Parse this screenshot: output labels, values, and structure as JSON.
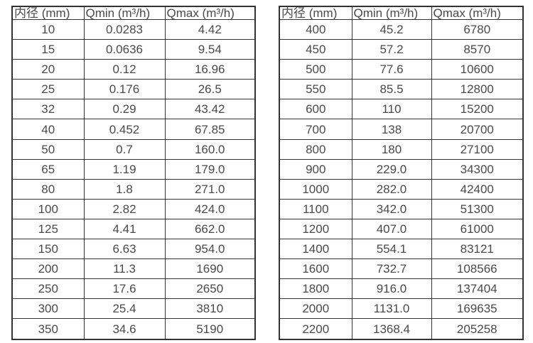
{
  "page": {
    "background_color": "#ffffff",
    "text_color": "#4a4a4a",
    "border_color": "#333333"
  },
  "chart_data": [
    {
      "type": "table",
      "title": "",
      "headers": [
        "内径 (mm)",
        "Qmin (m³/h)",
        "Qmax (m³/h)"
      ],
      "rows": [
        [
          "10",
          "0.0283",
          "4.42"
        ],
        [
          "15",
          "0.0636",
          "9.54"
        ],
        [
          "20",
          "0.12",
          "16.96"
        ],
        [
          "25",
          "0.176",
          "26.5"
        ],
        [
          "32",
          "0.29",
          "43.42"
        ],
        [
          "40",
          "0.452",
          "67.85"
        ],
        [
          "50",
          "0.7",
          "160.0"
        ],
        [
          "65",
          "1.19",
          "179.0"
        ],
        [
          "80",
          "1.8",
          "271.0"
        ],
        [
          "100",
          "2.82",
          "424.0"
        ],
        [
          "125",
          "4.41",
          "662.0"
        ],
        [
          "150",
          "6.63",
          "954.0"
        ],
        [
          "200",
          "11.3",
          "1690"
        ],
        [
          "250",
          "17.6",
          "2650"
        ],
        [
          "300",
          "25.4",
          "3810"
        ],
        [
          "350",
          "34.6",
          "5190"
        ]
      ]
    },
    {
      "type": "table",
      "title": "",
      "headers": [
        "内径 (mm)",
        "Qmin (m³/h)",
        "Qmax (m³/h)"
      ],
      "rows": [
        [
          "400",
          "45.2",
          "6780"
        ],
        [
          "450",
          "57.2",
          "8570"
        ],
        [
          "500",
          "77.6",
          "10600"
        ],
        [
          "550",
          "85.5",
          "12800"
        ],
        [
          "600",
          "110",
          "15200"
        ],
        [
          "700",
          "138",
          "20700"
        ],
        [
          "800",
          "180",
          "27100"
        ],
        [
          "900",
          "229.0",
          "34300"
        ],
        [
          "1000",
          "282.0",
          "42400"
        ],
        [
          "1100",
          "342.0",
          "51300"
        ],
        [
          "1200",
          "407.0",
          "61000"
        ],
        [
          "1400",
          "554.1",
          "83121"
        ],
        [
          "1600",
          "732.7",
          "108566"
        ],
        [
          "1800",
          "916.0",
          "137404"
        ],
        [
          "2000",
          "1131.0",
          "169635"
        ],
        [
          "2200",
          "1368.4",
          "205258"
        ]
      ]
    }
  ]
}
